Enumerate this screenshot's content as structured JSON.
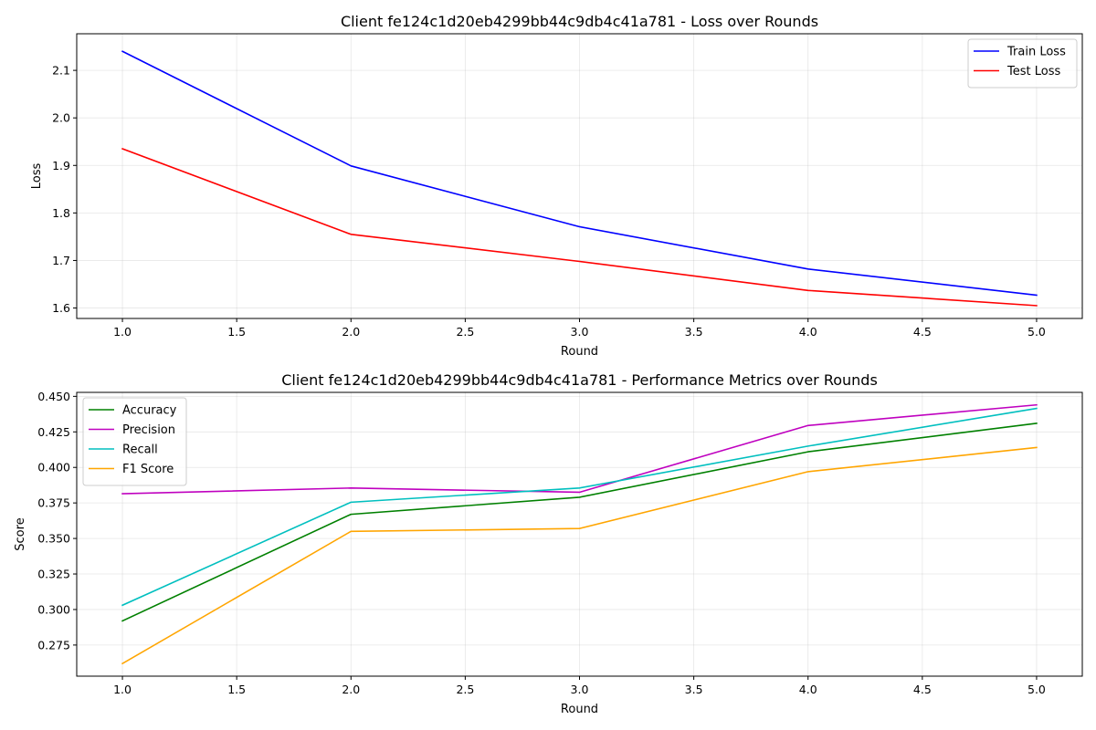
{
  "chart_data": [
    {
      "type": "line",
      "title": "Client fe124c1d20eb4299bb44c9db4c41a781 - Loss over Rounds",
      "xlabel": "Round",
      "ylabel": "Loss",
      "x": [
        1,
        2,
        3,
        4,
        5
      ],
      "xlim": [
        0.8,
        5.2
      ],
      "ylim": [
        1.578,
        2.177
      ],
      "xticks": [
        1.0,
        1.5,
        2.0,
        2.5,
        3.0,
        3.5,
        4.0,
        4.5,
        5.0
      ],
      "xtick_labels": [
        "1.0",
        "1.5",
        "2.0",
        "2.5",
        "3.0",
        "3.5",
        "4.0",
        "4.5",
        "5.0"
      ],
      "yticks": [
        1.6,
        1.7,
        1.8,
        1.9,
        2.0,
        2.1
      ],
      "ytick_labels": [
        "1.6",
        "1.7",
        "1.8",
        "1.9",
        "2.0",
        "2.1"
      ],
      "grid": true,
      "legend_position": "top-right",
      "series": [
        {
          "name": "Train Loss",
          "color": "#0000ff",
          "values": [
            2.14,
            1.899,
            1.771,
            1.682,
            1.627
          ]
        },
        {
          "name": "Test Loss",
          "color": "#ff0000",
          "values": [
            1.935,
            1.755,
            1.698,
            1.637,
            1.605
          ]
        }
      ]
    },
    {
      "type": "line",
      "title": "Client fe124c1d20eb4299bb44c9db4c41a781 - Performance Metrics over Rounds",
      "xlabel": "Round",
      "ylabel": "Score",
      "x": [
        1,
        2,
        3,
        4,
        5
      ],
      "xlim": [
        0.8,
        5.2
      ],
      "ylim": [
        0.2531,
        0.4528
      ],
      "xticks": [
        1.0,
        1.5,
        2.0,
        2.5,
        3.0,
        3.5,
        4.0,
        4.5,
        5.0
      ],
      "xtick_labels": [
        "1.0",
        "1.5",
        "2.0",
        "2.5",
        "3.0",
        "3.5",
        "4.0",
        "4.5",
        "5.0"
      ],
      "yticks": [
        0.275,
        0.3,
        0.325,
        0.35,
        0.375,
        0.4,
        0.425,
        0.45
      ],
      "ytick_labels": [
        "0.275",
        "0.300",
        "0.325",
        "0.350",
        "0.375",
        "0.400",
        "0.425",
        "0.450"
      ],
      "grid": true,
      "legend_position": "top-left",
      "series": [
        {
          "name": "Accuracy",
          "color": "#008000",
          "values": [
            0.292,
            0.367,
            0.379,
            0.411,
            0.431
          ]
        },
        {
          "name": "Precision",
          "color": "#bf00bf",
          "values": [
            0.3815,
            0.3855,
            0.3825,
            0.4295,
            0.444
          ]
        },
        {
          "name": "Recall",
          "color": "#00bfbf",
          "values": [
            0.303,
            0.3755,
            0.3855,
            0.415,
            0.4415
          ]
        },
        {
          "name": "F1 Score",
          "color": "#ffa500",
          "values": [
            0.262,
            0.355,
            0.357,
            0.397,
            0.414
          ]
        }
      ]
    }
  ]
}
